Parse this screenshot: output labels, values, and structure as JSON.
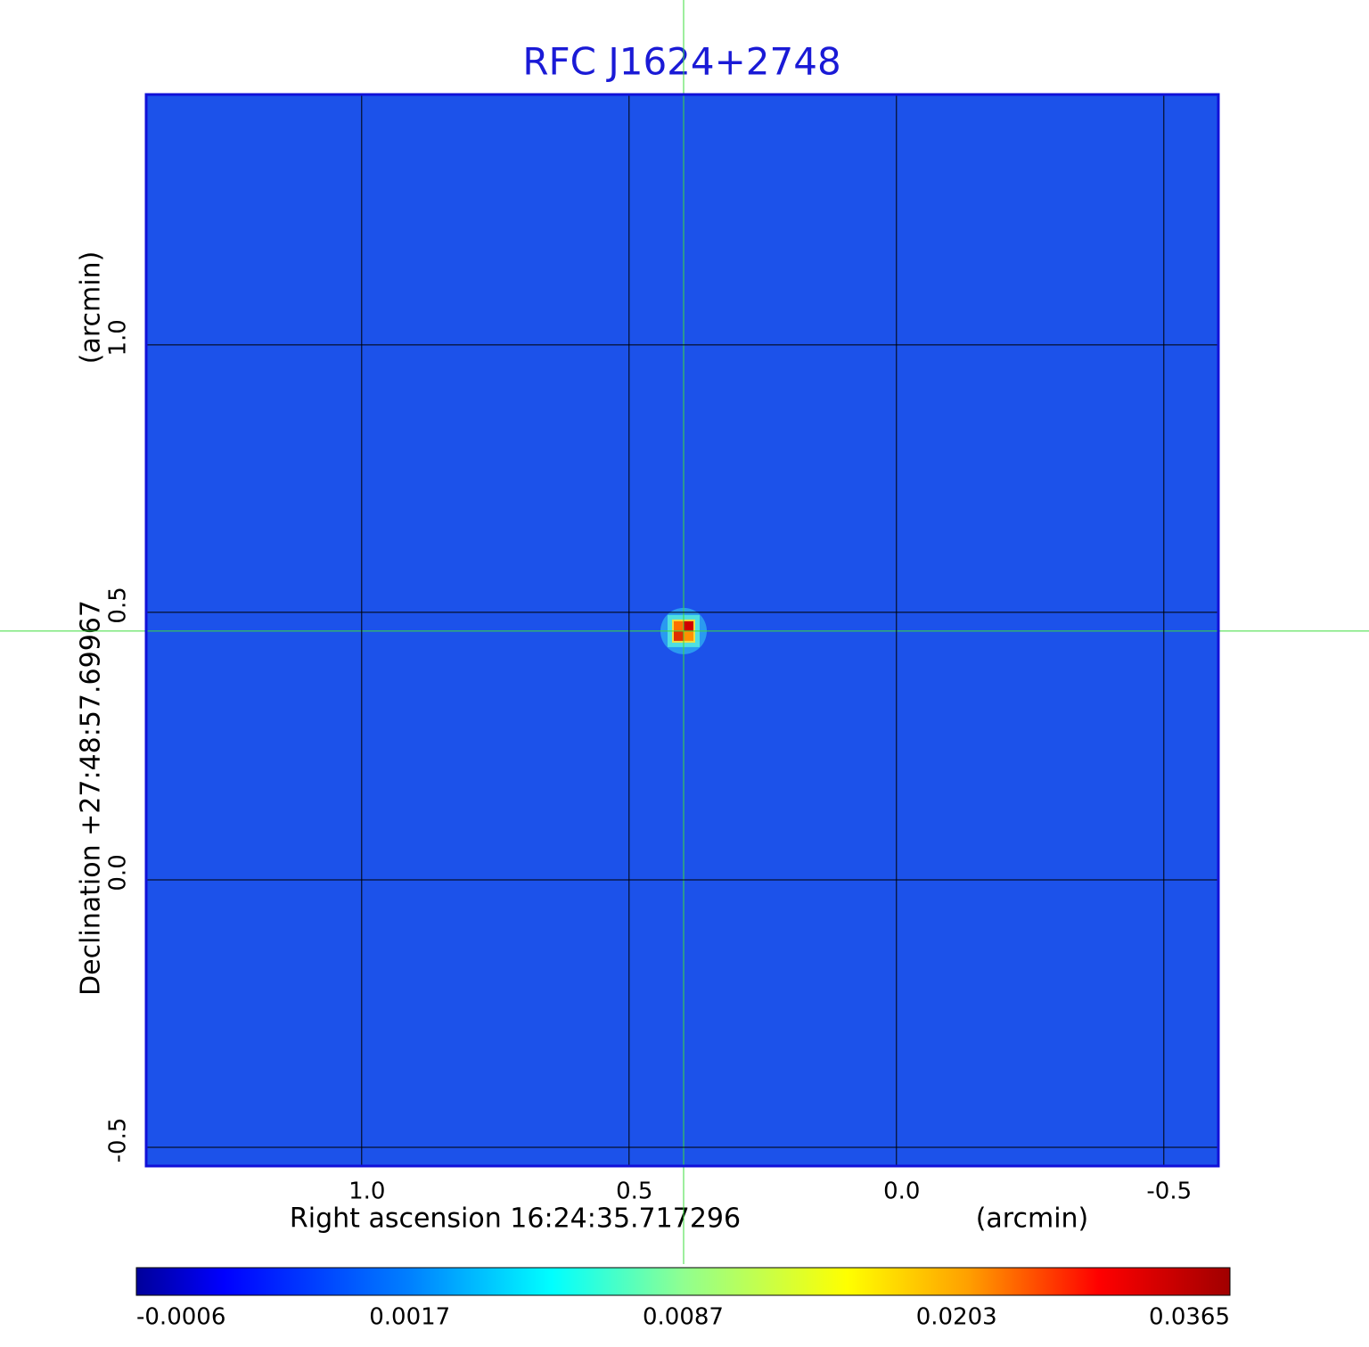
{
  "chart_data": {
    "type": "image",
    "title": "RFC J1624+2748",
    "x_label": "Right ascension  16:24:35.717296",
    "x_unit": "(arcmin)",
    "y_label": "Declination  +27:48:57.69967",
    "y_unit": "(arcmin)",
    "xlim": [
      1.403,
      -0.602
    ],
    "ylim": [
      -0.535,
      1.468
    ],
    "xticks": [
      {
        "value": 1,
        "label": "1.0"
      },
      0.5,
      {
        "value": 0,
        "label": "0.0"
      },
      -0.5
    ],
    "yticks": [
      {
        "value": -0.5,
        "label": "-0.5"
      },
      {
        "value": 0,
        "label": "0.0"
      },
      0.5,
      {
        "value": 1,
        "label": "1.0"
      }
    ],
    "grid": true,
    "background_color": "#1c52ea",
    "sources": [
      {
        "x": 0.398,
        "y": 0.465,
        "peak": 0.0365
      }
    ],
    "colorbar": {
      "ticks": [
        -0.0006,
        0.0017,
        0.0087,
        0.0203,
        0.0365
      ]
    }
  }
}
